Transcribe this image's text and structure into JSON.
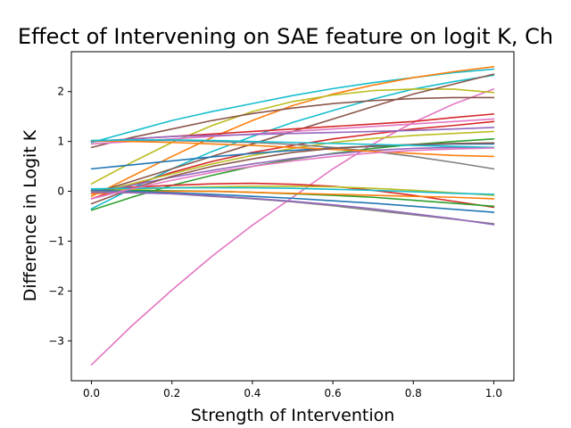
{
  "chart_data": {
    "type": "line",
    "title": "Effect of Intervening on SAE feature on logit K, Ch",
    "xlabel": "Strength of Intervention",
    "ylabel": "Difference in Logit K",
    "xlim": [
      -0.05,
      1.05
    ],
    "ylim": [
      -3.8,
      2.8
    ],
    "xticks": [
      0.0,
      0.2,
      0.4,
      0.6,
      0.8,
      1.0
    ],
    "xtick_labels": [
      "0.0",
      "0.2",
      "0.4",
      "0.6",
      "0.8",
      "1.0"
    ],
    "yticks": [
      -3,
      -2,
      -1,
      0,
      1,
      2
    ],
    "ytick_labels": [
      "−3",
      "−2",
      "−1",
      "0",
      "1",
      "2"
    ],
    "grid": false,
    "legend": "none",
    "x": [
      0.0,
      0.1,
      0.2,
      0.3,
      0.4,
      0.5,
      0.6,
      0.7,
      0.8,
      0.9,
      1.0
    ],
    "series": [
      {
        "color": "#e377c2",
        "values": [
          -3.48,
          -2.7,
          -1.98,
          -1.3,
          -0.68,
          -0.12,
          0.45,
          0.95,
          1.38,
          1.75,
          2.05
        ]
      },
      {
        "color": "#17becf",
        "values": [
          0.98,
          1.2,
          1.42,
          1.6,
          1.76,
          1.92,
          2.06,
          2.18,
          2.28,
          2.38,
          2.45
        ]
      },
      {
        "color": "#ff7f0e",
        "values": [
          -0.1,
          0.3,
          0.7,
          1.08,
          1.42,
          1.72,
          1.95,
          2.13,
          2.28,
          2.4,
          2.5
        ]
      },
      {
        "color": "#17becf",
        "values": [
          -0.35,
          0.05,
          0.45,
          0.8,
          1.1,
          1.38,
          1.62,
          1.85,
          2.05,
          2.2,
          2.33
        ]
      },
      {
        "color": "#bcbd22",
        "values": [
          0.15,
          0.58,
          0.98,
          1.32,
          1.6,
          1.8,
          1.93,
          2.02,
          2.05,
          2.05,
          1.98
        ]
      },
      {
        "color": "#8c564b",
        "values": [
          0.88,
          1.08,
          1.25,
          1.42,
          1.56,
          1.67,
          1.76,
          1.82,
          1.86,
          1.88,
          1.88
        ]
      },
      {
        "color": "#8c564b",
        "values": [
          -0.05,
          0.2,
          0.45,
          0.7,
          0.95,
          1.2,
          1.45,
          1.7,
          1.95,
          2.15,
          2.35
        ]
      },
      {
        "color": "#d62728",
        "values": [
          1.0,
          1.05,
          1.1,
          1.15,
          1.2,
          1.25,
          1.3,
          1.35,
          1.4,
          1.48,
          1.55
        ]
      },
      {
        "color": "#e377c2",
        "values": [
          0.95,
          1.0,
          1.05,
          1.1,
          1.15,
          1.2,
          1.25,
          1.3,
          1.35,
          1.4,
          1.45
        ]
      },
      {
        "color": "#d62728",
        "values": [
          -0.15,
          0.12,
          0.38,
          0.6,
          0.78,
          0.92,
          1.05,
          1.15,
          1.25,
          1.32,
          1.4
        ]
      },
      {
        "color": "#9467bd",
        "values": [
          1.0,
          1.05,
          1.1,
          1.12,
          1.14,
          1.16,
          1.18,
          1.2,
          1.22,
          1.25,
          1.28
        ]
      },
      {
        "color": "#bcbd22",
        "values": [
          -0.05,
          0.15,
          0.35,
          0.55,
          0.72,
          0.86,
          0.98,
          1.06,
          1.12,
          1.16,
          1.2
        ]
      },
      {
        "color": "#1f77b4",
        "values": [
          0.45,
          0.53,
          0.61,
          0.69,
          0.76,
          0.82,
          0.87,
          0.9,
          0.93,
          0.95,
          0.95
        ]
      },
      {
        "color": "#2ca02c",
        "values": [
          -0.38,
          -0.12,
          0.12,
          0.32,
          0.5,
          0.64,
          0.76,
          0.86,
          0.94,
          1.0,
          1.05
        ]
      },
      {
        "color": "#9467bd",
        "values": [
          -0.05,
          0.12,
          0.28,
          0.42,
          0.55,
          0.66,
          0.75,
          0.82,
          0.86,
          0.88,
          0.88
        ]
      },
      {
        "color": "#7f7f7f",
        "values": [
          1.0,
          1.02,
          1.02,
          1.0,
          0.98,
          0.94,
          0.88,
          0.8,
          0.7,
          0.58,
          0.45
        ]
      },
      {
        "color": "#ff7f0e",
        "values": [
          1.02,
          1.0,
          0.98,
          0.95,
          0.92,
          0.88,
          0.84,
          0.8,
          0.76,
          0.72,
          0.7
        ]
      },
      {
        "color": "#8c564b",
        "values": [
          -0.25,
          0.05,
          0.3,
          0.5,
          0.65,
          0.78,
          0.86,
          0.91,
          0.94,
          0.96,
          0.97
        ]
      },
      {
        "color": "#17becf",
        "values": [
          1.02,
          1.03,
          1.03,
          1.02,
          1.0,
          0.98,
          0.96,
          0.94,
          0.92,
          0.9,
          0.88
        ]
      },
      {
        "color": "#d62728",
        "values": [
          0.0,
          0.08,
          0.12,
          0.15,
          0.16,
          0.14,
          0.1,
          0.02,
          -0.08,
          -0.2,
          -0.32
        ]
      },
      {
        "color": "#2ca02c",
        "values": [
          0.02,
          0.02,
          0.01,
          0.0,
          -0.02,
          -0.05,
          -0.08,
          -0.12,
          -0.18,
          -0.24,
          -0.3
        ]
      },
      {
        "color": "#bcbd22",
        "values": [
          0.0,
          0.04,
          0.07,
          0.09,
          0.1,
          0.1,
          0.09,
          0.06,
          0.02,
          -0.03,
          -0.08
        ]
      },
      {
        "color": "#ff7f0e",
        "values": [
          -0.05,
          -0.02,
          0.0,
          0.0,
          -0.02,
          -0.04,
          -0.06,
          -0.08,
          -0.1,
          -0.12,
          -0.15
        ]
      },
      {
        "color": "#17becf",
        "values": [
          0.05,
          0.06,
          0.07,
          0.07,
          0.07,
          0.06,
          0.04,
          0.02,
          -0.01,
          -0.04,
          -0.06
        ]
      },
      {
        "color": "#1f77b4",
        "values": [
          0.02,
          0.0,
          -0.03,
          -0.06,
          -0.1,
          -0.14,
          -0.19,
          -0.24,
          -0.3,
          -0.36,
          -0.42
        ]
      },
      {
        "color": "#7f7f7f",
        "values": [
          0.0,
          -0.02,
          -0.05,
          -0.1,
          -0.15,
          -0.21,
          -0.29,
          -0.38,
          -0.47,
          -0.56,
          -0.65
        ]
      },
      {
        "color": "#9467bd",
        "values": [
          -0.02,
          -0.03,
          -0.05,
          -0.09,
          -0.14,
          -0.2,
          -0.27,
          -0.35,
          -0.45,
          -0.55,
          -0.67
        ]
      },
      {
        "color": "#e377c2",
        "values": [
          -0.15,
          0.05,
          0.22,
          0.38,
          0.5,
          0.61,
          0.7,
          0.77,
          0.82,
          0.85,
          0.87
        ]
      }
    ]
  }
}
